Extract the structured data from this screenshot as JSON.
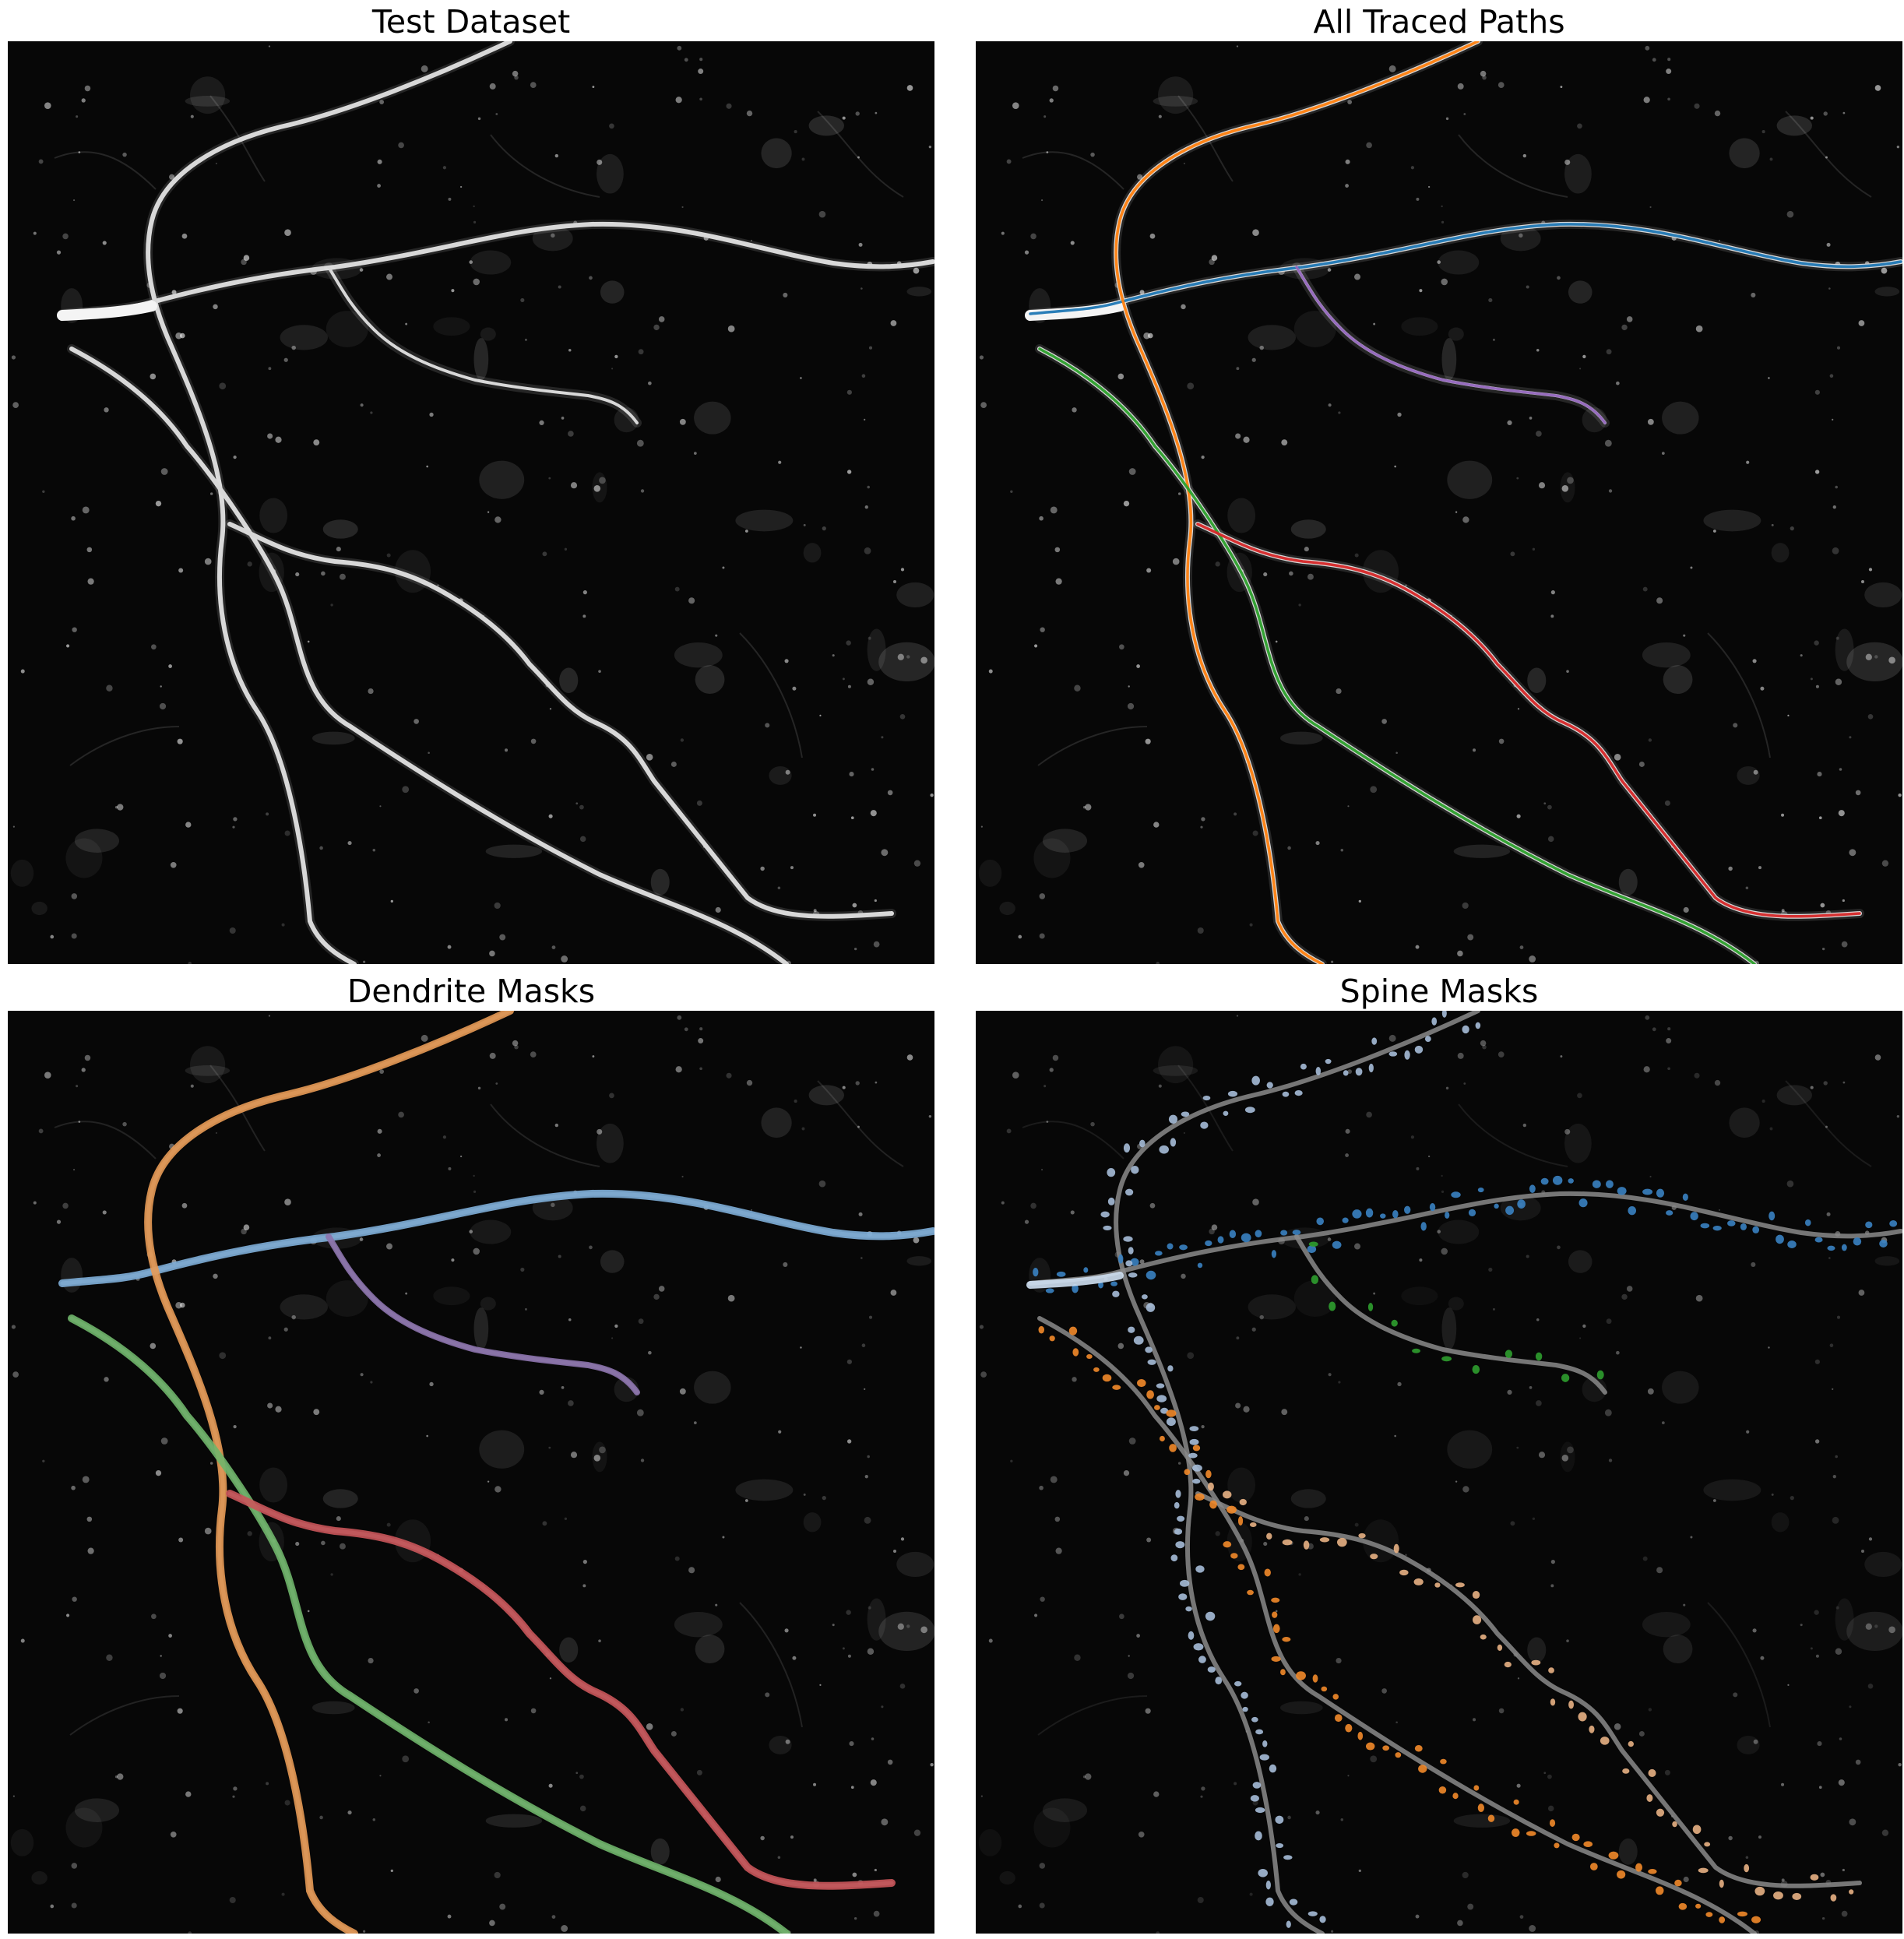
{
  "panels": [
    {
      "id": "test",
      "title": "Test Dataset",
      "style": "raw"
    },
    {
      "id": "paths",
      "title": "All Traced Paths",
      "style": "paths"
    },
    {
      "id": "dendrites",
      "title": "Dendrite Masks",
      "style": "masks"
    },
    {
      "id": "spines",
      "title": "Spine Masks",
      "style": "spines"
    }
  ],
  "colors": {
    "background": "#070707",
    "dendrite_gray": "#d8d8d8",
    "path_blue": "#1f77b4",
    "path_orange": "#ff7f0e",
    "path_green": "#2ca02c",
    "path_red": "#d62728",
    "path_purple": "#9467bd",
    "mask_blue": "#7eaed8",
    "mask_orange": "#e79a55",
    "mask_green": "#6fb56a",
    "mask_red": "#c9555a",
    "mask_purple": "#8c73ad",
    "spine_blue": "#3a82c2",
    "spine_orange": "#f28a2a",
    "spine_green": "#2f9e2f",
    "spine_lightblue": "#a6bdd8",
    "spine_peach": "#e8b184"
  }
}
